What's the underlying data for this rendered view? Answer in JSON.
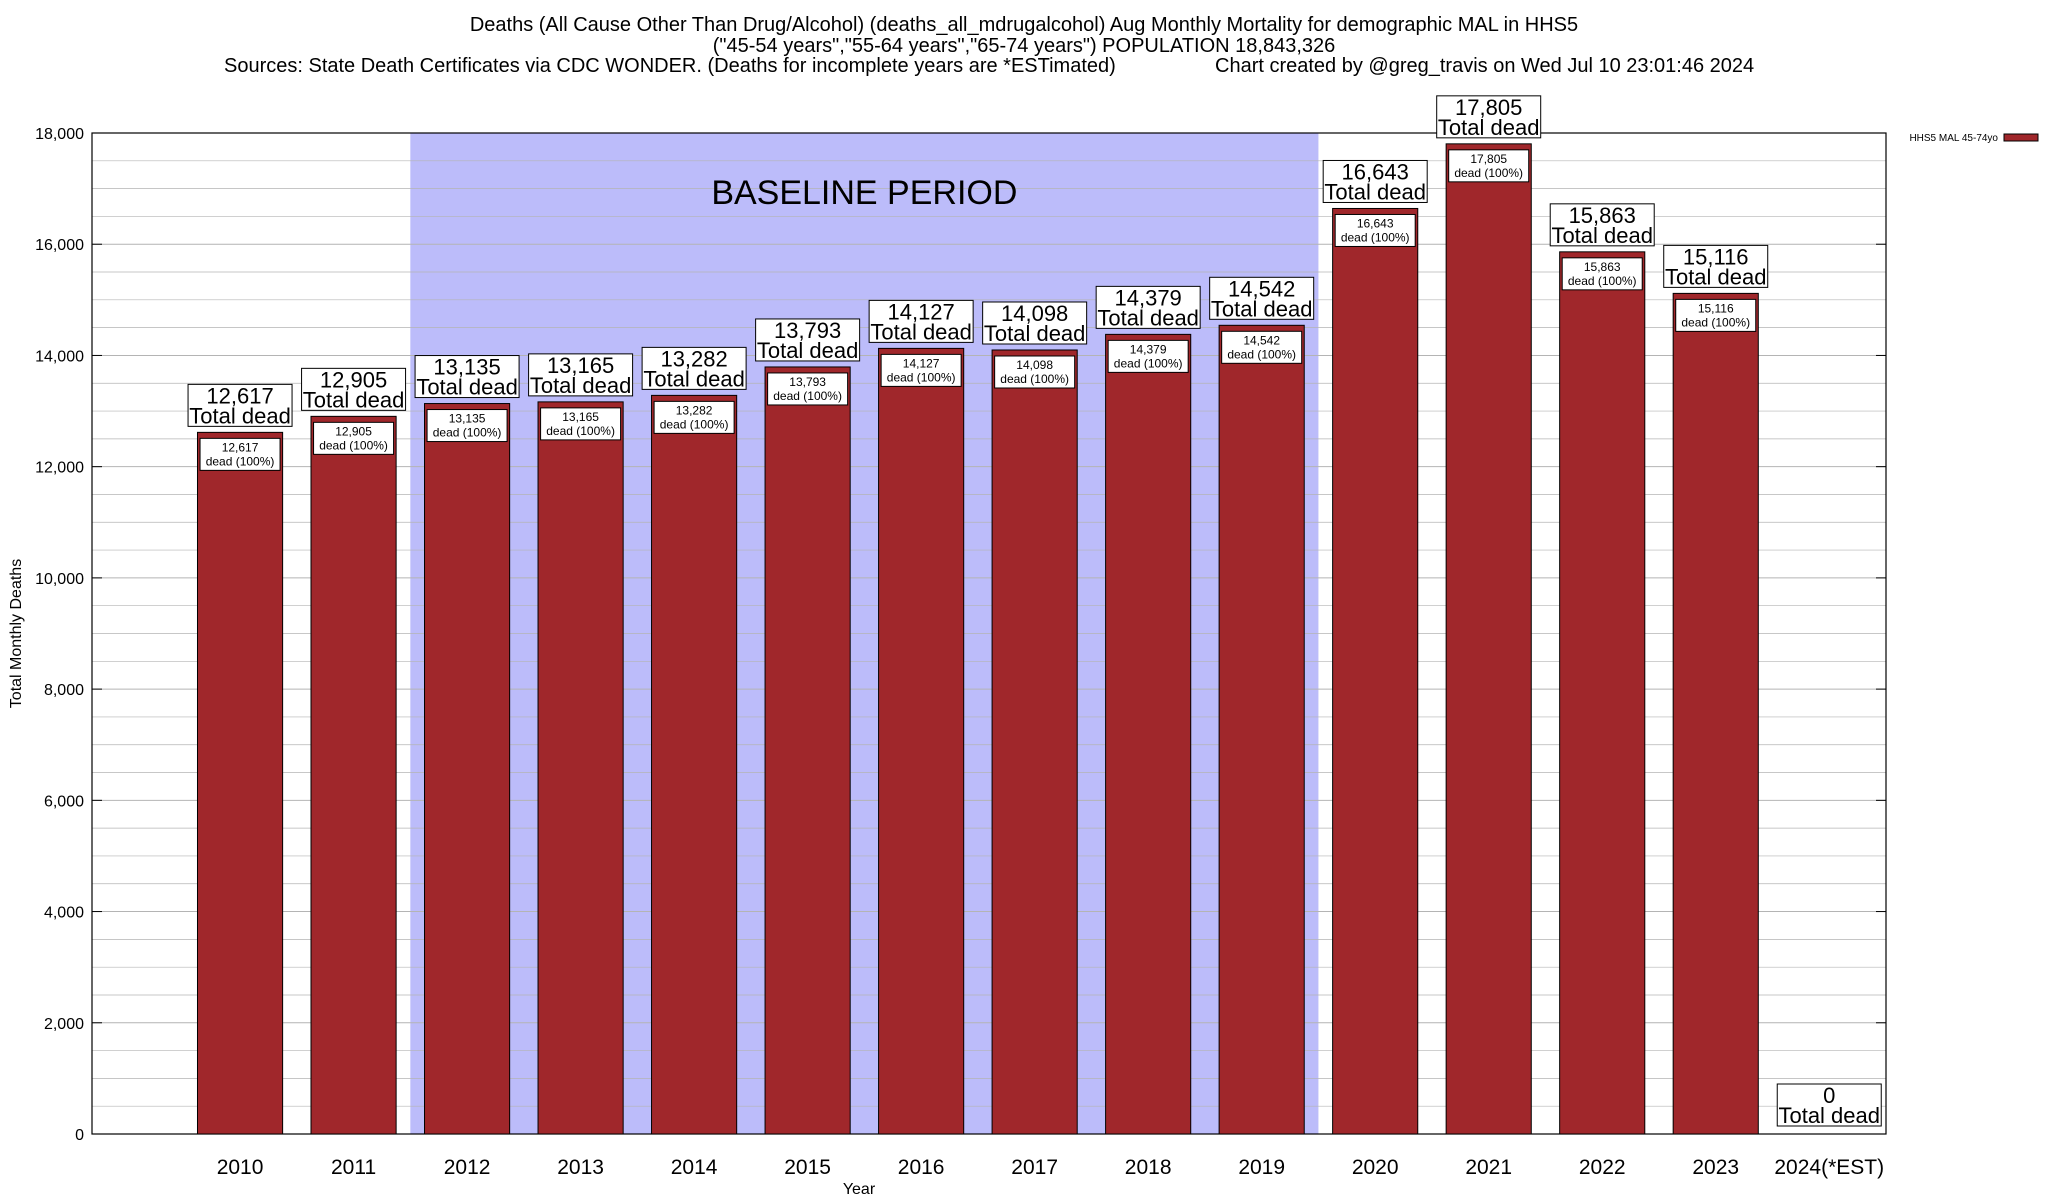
{
  "titles": {
    "line1": "Deaths (All Cause Other Than Drug/Alcohol) (deaths_all_mdrugalcohol) Aug Monthly Mortality for demographic MAL in HHS5",
    "line2": "(\"45-54 years\",\"55-64 years\",\"65-74 years\") POPULATION 18,843,326",
    "line3_left": "Sources: State Death Certificates via CDC WONDER. (Deaths for incomplete years are *ESTimated)",
    "line3_right": "Chart created by @greg_travis on Wed Jul 10 23:01:46 2024"
  },
  "chart_data": {
    "type": "bar",
    "categories": [
      "2010",
      "2011",
      "2012",
      "2013",
      "2014",
      "2015",
      "2016",
      "2017",
      "2018",
      "2019",
      "2020",
      "2021",
      "2022",
      "2023",
      "2024(*EST)"
    ],
    "series": [
      {
        "name": "HHS5 MAL 45-74yo",
        "values": [
          12617,
          12905,
          13135,
          13165,
          13282,
          13793,
          14127,
          14098,
          14379,
          14542,
          16643,
          17805,
          15863,
          15116,
          0
        ]
      }
    ],
    "value_labels": [
      "12,617",
      "12,905",
      "13,135",
      "13,165",
      "13,282",
      "13,793",
      "14,127",
      "14,098",
      "14,379",
      "14,542",
      "16,643",
      "17,805",
      "15,863",
      "15,116",
      "0"
    ],
    "total_label_suffix": "Total dead",
    "inner_label_suffix": "dead (100%)",
    "xlabel": "Year",
    "ylabel": "Total Monthly Deaths",
    "ylim": [
      0,
      18000
    ],
    "y_ticks": [
      0,
      2000,
      4000,
      6000,
      8000,
      10000,
      12000,
      14000,
      16000,
      18000
    ],
    "y_tick_labels": [
      "0",
      "2,000",
      "4,000",
      "6,000",
      "8,000",
      "10,000",
      "12,000",
      "14,000",
      "16,000",
      "18,000"
    ],
    "baseline": {
      "label": "BASELINE PERIOD",
      "from": "2012",
      "to": "2019"
    },
    "grid": true,
    "legend_position": "top-right",
    "colors": {
      "bar": "#a0272b",
      "baseline_band": "#bcbcfa",
      "grid": "#b4b4b4"
    }
  }
}
